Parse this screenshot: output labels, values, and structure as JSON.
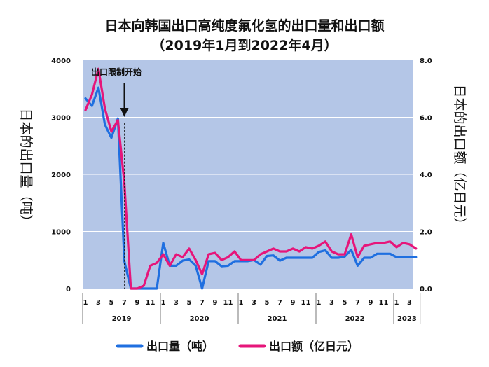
{
  "chart_data": {
    "type": "line",
    "title": "日本向韩国出口高纯度氟化氢的出口量和出口额",
    "subtitle": "（2019年1月到2022年4月）",
    "ylabel_left": "日本的出口量（吨）",
    "ylabel_right": "日本的出口额（亿日元）",
    "ylim_left": [
      0,
      4000
    ],
    "ylim_right": [
      0.0,
      8.0
    ],
    "yticks_left": [
      "0",
      "1000",
      "2000",
      "3000",
      "4000"
    ],
    "yticks_right": [
      "0.0",
      "2.0",
      "4.0",
      "6.0",
      "8.0"
    ],
    "month_ticks": [
      "1",
      "3",
      "5",
      "7",
      "9",
      "11",
      "1",
      "3",
      "5",
      "7",
      "9",
      "11",
      "1",
      "3",
      "5",
      "7",
      "9",
      "11",
      "1",
      "3",
      "5",
      "7",
      "9",
      "11",
      "1",
      "3"
    ],
    "years": [
      "2019",
      "2020",
      "2021",
      "2022",
      "2023"
    ],
    "annotation": "出口限制开始",
    "grid": true,
    "legend_position": "bottom",
    "series": [
      {
        "name": "出口量（吨）",
        "color": "#1f6fe0",
        "axis": "left",
        "values": [
          3330,
          3200,
          3520,
          2870,
          2640,
          2980,
          480,
          0,
          0,
          0,
          0,
          0,
          800,
          400,
          400,
          490,
          510,
          400,
          0,
          480,
          480,
          390,
          400,
          480,
          480,
          480,
          500,
          420,
          570,
          580,
          490,
          540,
          540,
          540,
          540,
          540,
          640,
          670,
          540,
          540,
          560,
          680,
          400,
          540,
          540,
          610,
          610,
          610,
          550,
          550,
          550,
          550
        ]
      },
      {
        "name": "出口额（亿日元）",
        "color": "#e6157a",
        "axis": "right",
        "values": [
          6.25,
          6.8,
          7.7,
          6.3,
          5.5,
          5.9,
          3.7,
          0.0,
          0.0,
          0.1,
          0.8,
          0.9,
          1.2,
          0.8,
          1.2,
          1.1,
          1.4,
          1.0,
          0.5,
          1.2,
          1.25,
          1.0,
          1.1,
          1.3,
          1.0,
          1.0,
          1.0,
          1.2,
          1.3,
          1.4,
          1.3,
          1.3,
          1.4,
          1.3,
          1.45,
          1.4,
          1.5,
          1.65,
          1.3,
          1.2,
          1.2,
          1.9,
          1.1,
          1.5,
          1.55,
          1.6,
          1.6,
          1.65,
          1.45,
          1.6,
          1.55,
          1.4
        ]
      }
    ]
  }
}
